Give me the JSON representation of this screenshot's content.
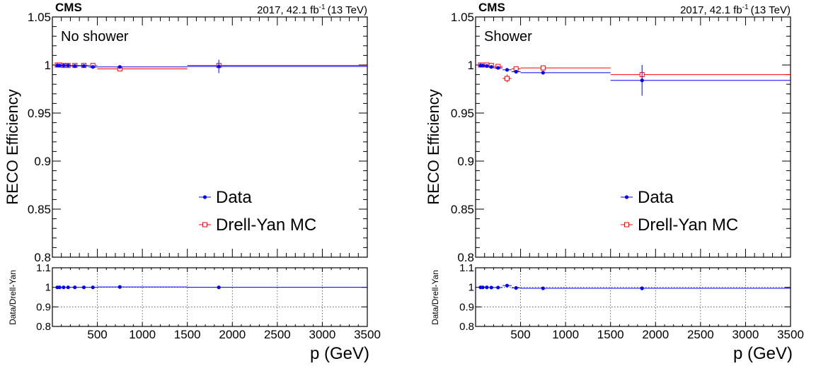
{
  "chart_data": [
    {
      "type": "scatter",
      "experiment": "CMS",
      "luminosity": "2017, 42.1 fb",
      "luminosity_sup": "-1",
      "energy": "(13 TeV)",
      "annotation": "No shower",
      "ylabel": "RECO Efficiency",
      "xlabel": "p (GeV)",
      "ratio_ylabel": "Data/Drell-Yan",
      "xlim": [
        0,
        3500
      ],
      "ylim": [
        0.8,
        1.05
      ],
      "ratio_ylim": [
        0.8,
        1.1
      ],
      "xticks": [
        500,
        1000,
        1500,
        2000,
        2500,
        3000,
        3500
      ],
      "yticks": [
        0.8,
        0.85,
        0.9,
        0.95,
        1,
        1.05
      ],
      "ratio_yticks": [
        0.8,
        0.9,
        1,
        1.1
      ],
      "grid_ratio": true,
      "legend_position": "center-right",
      "series": [
        {
          "name": "Data",
          "color": "#0000ff",
          "marker": "filled-circle",
          "points": [
            {
              "x": 55,
              "y": 0.9995,
              "xlo": 50,
              "xhi": 60
            },
            {
              "x": 80,
              "y": 0.9995,
              "xlo": 60,
              "xhi": 100
            },
            {
              "x": 125,
              "y": 0.9995,
              "xlo": 100,
              "xhi": 150
            },
            {
              "x": 175,
              "y": 0.9995,
              "xlo": 150,
              "xhi": 200
            },
            {
              "x": 250,
              "y": 0.999,
              "xlo": 200,
              "xhi": 300
            },
            {
              "x": 350,
              "y": 0.999,
              "xlo": 300,
              "xhi": 400
            },
            {
              "x": 450,
              "y": 0.998,
              "xlo": 400,
              "xhi": 500
            },
            {
              "x": 750,
              "y": 0.998,
              "xlo": 500,
              "xhi": 1500
            },
            {
              "x": 1850,
              "y": 0.9985,
              "xlo": 1500,
              "xhi": 3500,
              "err": 0.007
            }
          ]
        },
        {
          "name": "Drell-Yan MC",
          "color": "#ff0000",
          "marker": "open-square",
          "points": [
            {
              "x": 55,
              "y": 1.0,
              "xlo": 50,
              "xhi": 60
            },
            {
              "x": 80,
              "y": 1.0,
              "xlo": 60,
              "xhi": 100
            },
            {
              "x": 125,
              "y": 0.9995,
              "xlo": 100,
              "xhi": 150
            },
            {
              "x": 175,
              "y": 0.9995,
              "xlo": 150,
              "xhi": 200
            },
            {
              "x": 250,
              "y": 0.9995,
              "xlo": 200,
              "xhi": 300
            },
            {
              "x": 350,
              "y": 0.9995,
              "xlo": 300,
              "xhi": 400
            },
            {
              "x": 450,
              "y": 0.9995,
              "xlo": 400,
              "xhi": 500
            },
            {
              "x": 750,
              "y": 0.996,
              "xlo": 500,
              "xhi": 1500
            },
            {
              "x": 1850,
              "y": 0.9995,
              "xlo": 1500,
              "xhi": 3500
            }
          ]
        }
      ],
      "ratio": {
        "color": "#0000ff",
        "points": [
          {
            "x": 55,
            "y": 1.0
          },
          {
            "x": 80,
            "y": 1.0
          },
          {
            "x": 125,
            "y": 1.0
          },
          {
            "x": 175,
            "y": 1.0
          },
          {
            "x": 250,
            "y": 1.0
          },
          {
            "x": 350,
            "y": 1.0
          },
          {
            "x": 450,
            "y": 1.0
          },
          {
            "x": 750,
            "y": 1.002
          },
          {
            "x": 1850,
            "y": 1.0
          }
        ]
      }
    },
    {
      "type": "scatter",
      "experiment": "CMS",
      "luminosity": "2017, 42.1 fb",
      "luminosity_sup": "-1",
      "energy": "(13 TeV)",
      "annotation": "Shower",
      "ylabel": "RECO Efficiency",
      "xlabel": "p (GeV)",
      "ratio_ylabel": "Data/Drell-Yan",
      "xlim": [
        0,
        3500
      ],
      "ylim": [
        0.8,
        1.05
      ],
      "ratio_ylim": [
        0.8,
        1.1
      ],
      "xticks": [
        500,
        1000,
        1500,
        2000,
        2500,
        3000,
        3500
      ],
      "yticks": [
        0.8,
        0.85,
        0.9,
        0.95,
        1,
        1.05
      ],
      "ratio_yticks": [
        0.8,
        0.9,
        1,
        1.1
      ],
      "grid_ratio": true,
      "legend_position": "center-right",
      "series": [
        {
          "name": "Data",
          "color": "#0000ff",
          "marker": "filled-circle",
          "points": [
            {
              "x": 55,
              "y": 0.9995,
              "xlo": 50,
              "xhi": 60
            },
            {
              "x": 80,
              "y": 0.9995,
              "xlo": 60,
              "xhi": 100
            },
            {
              "x": 125,
              "y": 0.999,
              "xlo": 100,
              "xhi": 150
            },
            {
              "x": 175,
              "y": 0.998,
              "xlo": 150,
              "xhi": 200
            },
            {
              "x": 250,
              "y": 0.997,
              "xlo": 200,
              "xhi": 300
            },
            {
              "x": 350,
              "y": 0.995,
              "xlo": 300,
              "xhi": 400
            },
            {
              "x": 450,
              "y": 0.993,
              "xlo": 400,
              "xhi": 500
            },
            {
              "x": 750,
              "y": 0.992,
              "xlo": 500,
              "xhi": 1500
            },
            {
              "x": 1850,
              "y": 0.984,
              "xlo": 1500,
              "xhi": 3500,
              "err": 0.016
            }
          ]
        },
        {
          "name": "Drell-Yan MC",
          "color": "#ff0000",
          "marker": "open-square",
          "points": [
            {
              "x": 55,
              "y": 1.0,
              "xlo": 50,
              "xhi": 60
            },
            {
              "x": 80,
              "y": 1.0,
              "xlo": 60,
              "xhi": 100
            },
            {
              "x": 125,
              "y": 1.0,
              "xlo": 100,
              "xhi": 150
            },
            {
              "x": 175,
              "y": 0.9995,
              "xlo": 150,
              "xhi": 200
            },
            {
              "x": 250,
              "y": 0.9985,
              "xlo": 200,
              "xhi": 300
            },
            {
              "x": 350,
              "y": 0.986,
              "xlo": 300,
              "xhi": 400,
              "err": 0.004
            },
            {
              "x": 450,
              "y": 0.996,
              "xlo": 400,
              "xhi": 500
            },
            {
              "x": 750,
              "y": 0.997,
              "xlo": 500,
              "xhi": 1500
            },
            {
              "x": 1850,
              "y": 0.99,
              "xlo": 1500,
              "xhi": 3500,
              "err": 0.002
            }
          ]
        }
      ],
      "ratio": {
        "color": "#0000ff",
        "points": [
          {
            "x": 55,
            "y": 1.0
          },
          {
            "x": 80,
            "y": 1.0
          },
          {
            "x": 125,
            "y": 1.0
          },
          {
            "x": 175,
            "y": 0.999,
            "err": 0.003
          },
          {
            "x": 250,
            "y": 0.999
          },
          {
            "x": 350,
            "y": 1.009,
            "err": 0.004
          },
          {
            "x": 450,
            "y": 0.997
          },
          {
            "x": 750,
            "y": 0.995
          },
          {
            "x": 1850,
            "y": 0.995,
            "err": 0.01
          }
        ]
      }
    }
  ]
}
